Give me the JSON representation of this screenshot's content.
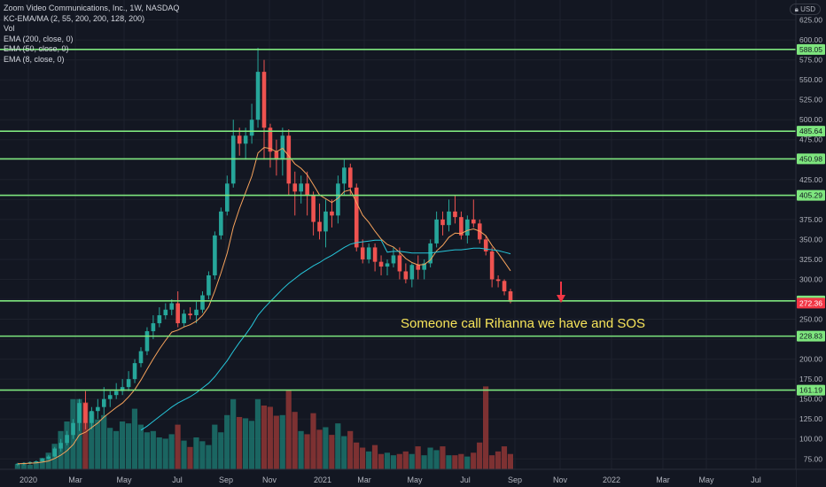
{
  "legend": {
    "symbol": "Zoom Video Communications, Inc., 1W, NASDAQ",
    "indicators": [
      "KC-EMA/MA (2, 55, 200, 200, 128, 200)",
      "Vol",
      "EMA (200, close, 0)",
      "EMA (50, close, 0)",
      "EMA (8, close, 0)"
    ]
  },
  "currency": "USD",
  "annotation": "Someone call Rihanna we have and SOS",
  "arrow": {
    "color": "#f23645",
    "direction": "down"
  },
  "colors": {
    "up": "#26a69a",
    "down": "#ef5350",
    "ema_fast": "#f7a35c",
    "ema_slow": "#26c6da",
    "level_line": "#7ee67e",
    "current_price": "#f23645",
    "background": "#131722"
  },
  "chart_data": {
    "type": "candlestick",
    "x_tick_labels": [
      "2020",
      "Mar",
      "May",
      "Jul",
      "Sep",
      "Nov",
      "2021",
      "Mar",
      "May",
      "Jul",
      "Sep",
      "Nov",
      "2022",
      "Mar",
      "May",
      "Jul"
    ],
    "y_tick_labels": [
      75,
      100,
      125,
      150,
      175,
      200,
      225,
      250,
      275,
      300,
      325,
      350,
      375,
      400,
      425,
      450,
      475,
      500,
      525,
      550,
      575,
      600,
      625
    ],
    "ylim": [
      62,
      650
    ],
    "horizontal_levels": [
      588.05,
      485.64,
      450.98,
      405.29,
      272.95,
      228.83,
      161.19
    ],
    "current_price": 272.36,
    "series": [
      {
        "name": "Price",
        "ohlc": [
          [
            68,
            70,
            66,
            69
          ],
          [
            69,
            71,
            67,
            70
          ],
          [
            70,
            72,
            68,
            71
          ],
          [
            71,
            73,
            70,
            72
          ],
          [
            72,
            76,
            71,
            75
          ],
          [
            75,
            80,
            74,
            78
          ],
          [
            78,
            90,
            77,
            88
          ],
          [
            88,
            100,
            84,
            95
          ],
          [
            95,
            110,
            92,
            105
          ],
          [
            105,
            125,
            100,
            120
          ],
          [
            120,
            150,
            110,
            145
          ],
          [
            145,
            160,
            112,
            120
          ],
          [
            120,
            140,
            112,
            135
          ],
          [
            135,
            150,
            125,
            140
          ],
          [
            140,
            165,
            130,
            150
          ],
          [
            150,
            160,
            140,
            155
          ],
          [
            155,
            170,
            150,
            160
          ],
          [
            160,
            175,
            155,
            165
          ],
          [
            165,
            185,
            160,
            175
          ],
          [
            175,
            200,
            170,
            195
          ],
          [
            195,
            215,
            190,
            210
          ],
          [
            210,
            240,
            205,
            235
          ],
          [
            235,
            255,
            225,
            245
          ],
          [
            245,
            265,
            240,
            255
          ],
          [
            255,
            270,
            250,
            262
          ],
          [
            262,
            275,
            255,
            270
          ],
          [
            270,
            285,
            240,
            245
          ],
          [
            245,
            262,
            240,
            257
          ],
          [
            257,
            265,
            250,
            255
          ],
          [
            255,
            272,
            245,
            262
          ],
          [
            262,
            285,
            258,
            280
          ],
          [
            280,
            310,
            275,
            305
          ],
          [
            305,
            360,
            300,
            355
          ],
          [
            355,
            390,
            350,
            385
          ],
          [
            385,
            430,
            380,
            420
          ],
          [
            420,
            500,
            415,
            480
          ],
          [
            480,
            490,
            455,
            470
          ],
          [
            470,
            490,
            450,
            480
          ],
          [
            480,
            520,
            470,
            500
          ],
          [
            500,
            590,
            490,
            560
          ],
          [
            560,
            575,
            450,
            490
          ],
          [
            490,
            495,
            440,
            460
          ],
          [
            460,
            475,
            430,
            450
          ],
          [
            450,
            490,
            430,
            480
          ],
          [
            480,
            488,
            405,
            420
          ],
          [
            420,
            435,
            380,
            410
          ],
          [
            410,
            430,
            395,
            420
          ],
          [
            420,
            435,
            380,
            405
          ],
          [
            405,
            410,
            355,
            372
          ],
          [
            372,
            395,
            350,
            360
          ],
          [
            360,
            400,
            340,
            385
          ],
          [
            385,
            400,
            365,
            380
          ],
          [
            380,
            430,
            370,
            420
          ],
          [
            420,
            450,
            405,
            440
          ],
          [
            440,
            445,
            405,
            415
          ],
          [
            415,
            420,
            335,
            340
          ],
          [
            340,
            350,
            320,
            325
          ],
          [
            325,
            345,
            320,
            340
          ],
          [
            340,
            345,
            310,
            322
          ],
          [
            322,
            330,
            305,
            316
          ],
          [
            316,
            325,
            305,
            320
          ],
          [
            320,
            340,
            315,
            330
          ],
          [
            330,
            340,
            300,
            310
          ],
          [
            310,
            320,
            295,
            300
          ],
          [
            300,
            320,
            290,
            318
          ],
          [
            318,
            330,
            300,
            312
          ],
          [
            312,
            325,
            300,
            320
          ],
          [
            320,
            350,
            315,
            345
          ],
          [
            345,
            385,
            340,
            375
          ],
          [
            375,
            385,
            355,
            368
          ],
          [
            368,
            400,
            360,
            385
          ],
          [
            385,
            405,
            370,
            378
          ],
          [
            378,
            385,
            350,
            355
          ],
          [
            355,
            380,
            345,
            375
          ],
          [
            375,
            400,
            365,
            370
          ],
          [
            370,
            375,
            345,
            350
          ],
          [
            350,
            355,
            330,
            335
          ],
          [
            335,
            340,
            290,
            300
          ],
          [
            300,
            305,
            290,
            298
          ],
          [
            298,
            300,
            280,
            285
          ],
          [
            285,
            288,
            270,
            272
          ]
        ]
      },
      {
        "name": "EMA (8, close, 0)",
        "values": [
          69,
          69.2,
          69.6,
          70,
          71,
          72.4,
          75.5,
          79.7,
          85.3,
          93,
          105,
          108.5,
          114.3,
          120,
          127.5,
          133.6,
          139.5,
          145,
          152.8,
          162,
          173.8,
          187.4,
          200.2,
          212.4,
          223.5,
          233.9,
          236.4,
          240.4,
          243.2,
          247.6,
          254.8,
          265.9,
          285.6,
          307.8,
          332.7,
          365.5,
          388.7,
          409,
          429.2,
          458.3,
          465.3,
          464,
          459.8,
          464.3,
          454.5,
          444.6,
          439.1,
          431,
          418.6,
          405.6,
          401,
          396.3,
          401.6,
          410,
          412,
          396.1,
          380.3,
          371.3,
          360.3,
          350.5,
          343.7,
          340.6,
          333.8,
          326,
          321.1,
          318.1,
          318.5,
          324.4,
          335.6,
          342.7,
          352.8,
          358,
          357.4,
          361.3,
          363.2,
          360.3,
          354.7,
          342.5,
          332.6,
          321.8,
          310.7
        ]
      },
      {
        "name": "EMA (50, close, 0)",
        "values": [
          null,
          null,
          null,
          null,
          null,
          null,
          null,
          null,
          null,
          null,
          null,
          null,
          null,
          null,
          null,
          null,
          null,
          null,
          null,
          null,
          111,
          116,
          122,
          128,
          134,
          140,
          145,
          149,
          153,
          158,
          164,
          170,
          178,
          188,
          198,
          210,
          221,
          231,
          242,
          255,
          264,
          272,
          280,
          288,
          295,
          301,
          307,
          312,
          317,
          321,
          326,
          330,
          335,
          340,
          344,
          346,
          347,
          348,
          349,
          349,
          334,
          335,
          335,
          334,
          333,
          333,
          333,
          333,
          334,
          335,
          336,
          337,
          337,
          338,
          339,
          339,
          338,
          337,
          336,
          334,
          332
        ]
      }
    ],
    "volume": [
      8,
      9,
      7,
      12,
      18,
      26,
      40,
      60,
      75,
      110,
      110,
      105,
      90,
      78,
      85,
      65,
      60,
      75,
      72,
      95,
      70,
      58,
      60,
      50,
      48,
      55,
      70,
      45,
      35,
      50,
      44,
      38,
      70,
      58,
      85,
      110,
      82,
      80,
      76,
      110,
      100,
      98,
      84,
      85,
      125,
      90,
      60,
      55,
      88,
      62,
      66,
      54,
      72,
      52,
      60,
      42,
      34,
      28,
      38,
      24,
      26,
      22,
      24,
      28,
      24,
      36,
      22,
      34,
      30,
      36,
      22,
      22,
      24,
      20,
      26,
      42,
      130,
      22,
      28,
      36,
      24
    ]
  }
}
